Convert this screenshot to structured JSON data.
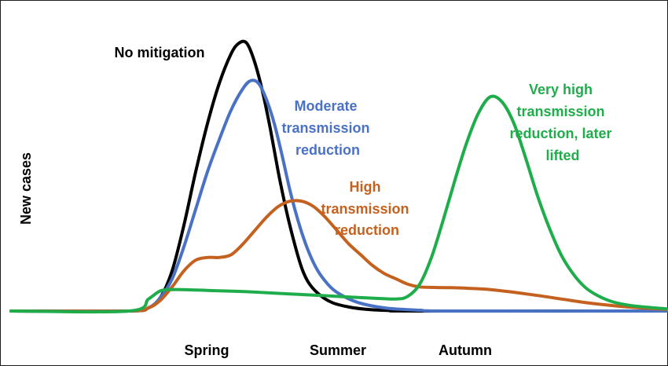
{
  "chart_data": {
    "type": "line",
    "ylabel": "New cases",
    "x_tick_labels": [
      "Spring",
      "Summer",
      "Autumn"
    ],
    "grid": false,
    "colors": {
      "no_mitigation": "#000000",
      "moderate": "#4a72c4",
      "high": "#c5611f",
      "very_high": "#1fad4c"
    },
    "series": [
      {
        "key": "no_mitigation",
        "label_lines": [
          "No mitigation"
        ],
        "color": "#000000",
        "points": [
          [
            0,
            0.0
          ],
          [
            150,
            0.0
          ],
          [
            175,
            0.012
          ],
          [
            190,
            0.05
          ],
          [
            205,
            0.15
          ],
          [
            220,
            0.32
          ],
          [
            235,
            0.52
          ],
          [
            250,
            0.7
          ],
          [
            265,
            0.85
          ],
          [
            280,
            0.96
          ],
          [
            290,
            1.0
          ],
          [
            300,
            1.0
          ],
          [
            310,
            0.93
          ],
          [
            320,
            0.82
          ],
          [
            330,
            0.68
          ],
          [
            340,
            0.52
          ],
          [
            350,
            0.38
          ],
          [
            360,
            0.26
          ],
          [
            370,
            0.16
          ],
          [
            380,
            0.1
          ],
          [
            395,
            0.055
          ],
          [
            410,
            0.03
          ],
          [
            430,
            0.015
          ],
          [
            450,
            0.007
          ],
          [
            480,
            0.002
          ],
          [
            520,
            0.0
          ],
          [
            835,
            0.0
          ]
        ]
      },
      {
        "key": "moderate",
        "label_lines": [
          "Moderate",
          "transmission",
          "reduction"
        ],
        "color": "#4a72c4",
        "points": [
          [
            0,
            0.0
          ],
          [
            150,
            0.0
          ],
          [
            175,
            0.012
          ],
          [
            190,
            0.05
          ],
          [
            205,
            0.12
          ],
          [
            220,
            0.24
          ],
          [
            235,
            0.38
          ],
          [
            250,
            0.52
          ],
          [
            265,
            0.64
          ],
          [
            280,
            0.75
          ],
          [
            295,
            0.83
          ],
          [
            305,
            0.86
          ],
          [
            315,
            0.85
          ],
          [
            325,
            0.79
          ],
          [
            335,
            0.7
          ],
          [
            345,
            0.58
          ],
          [
            355,
            0.45
          ],
          [
            365,
            0.34
          ],
          [
            375,
            0.25
          ],
          [
            385,
            0.18
          ],
          [
            395,
            0.13
          ],
          [
            410,
            0.08
          ],
          [
            430,
            0.045
          ],
          [
            450,
            0.025
          ],
          [
            480,
            0.01
          ],
          [
            520,
            0.003
          ],
          [
            560,
            0.0
          ],
          [
            835,
            0.0
          ]
        ]
      },
      {
        "key": "high",
        "label_lines": [
          "High",
          "transmission",
          "reduction"
        ],
        "color": "#c5611f",
        "points": [
          [
            0,
            0.0
          ],
          [
            150,
            0.0
          ],
          [
            175,
            0.012
          ],
          [
            190,
            0.04
          ],
          [
            205,
            0.09
          ],
          [
            220,
            0.15
          ],
          [
            235,
            0.19
          ],
          [
            250,
            0.2
          ],
          [
            265,
            0.2
          ],
          [
            280,
            0.21
          ],
          [
            295,
            0.25
          ],
          [
            310,
            0.3
          ],
          [
            325,
            0.35
          ],
          [
            340,
            0.39
          ],
          [
            355,
            0.41
          ],
          [
            370,
            0.41
          ],
          [
            385,
            0.39
          ],
          [
            400,
            0.35
          ],
          [
            415,
            0.3
          ],
          [
            430,
            0.25
          ],
          [
            445,
            0.21
          ],
          [
            460,
            0.17
          ],
          [
            475,
            0.14
          ],
          [
            490,
            0.12
          ],
          [
            505,
            0.1
          ],
          [
            520,
            0.09
          ],
          [
            540,
            0.088
          ],
          [
            560,
            0.087
          ],
          [
            580,
            0.085
          ],
          [
            610,
            0.08
          ],
          [
            640,
            0.07
          ],
          [
            670,
            0.058
          ],
          [
            700,
            0.045
          ],
          [
            730,
            0.032
          ],
          [
            760,
            0.022
          ],
          [
            790,
            0.014
          ],
          [
            835,
            0.006
          ]
        ]
      },
      {
        "key": "very_high",
        "label_lines": [
          "Very high",
          "transmission",
          "reduction, later",
          "lifted"
        ],
        "color": "#1fad4c",
        "points": [
          [
            0,
            0.0
          ],
          [
            150,
            0.0
          ],
          [
            175,
            0.045
          ],
          [
            190,
            0.075
          ],
          [
            205,
            0.08
          ],
          [
            230,
            0.079
          ],
          [
            260,
            0.076
          ],
          [
            300,
            0.072
          ],
          [
            340,
            0.066
          ],
          [
            380,
            0.06
          ],
          [
            420,
            0.054
          ],
          [
            460,
            0.048
          ],
          [
            490,
            0.045
          ],
          [
            505,
            0.055
          ],
          [
            520,
            0.1
          ],
          [
            535,
            0.2
          ],
          [
            550,
            0.34
          ],
          [
            565,
            0.49
          ],
          [
            580,
            0.63
          ],
          [
            595,
            0.74
          ],
          [
            610,
            0.8
          ],
          [
            625,
            0.78
          ],
          [
            640,
            0.7
          ],
          [
            655,
            0.57
          ],
          [
            670,
            0.43
          ],
          [
            685,
            0.31
          ],
          [
            700,
            0.21
          ],
          [
            715,
            0.14
          ],
          [
            730,
            0.09
          ],
          [
            745,
            0.06
          ],
          [
            765,
            0.035
          ],
          [
            790,
            0.02
          ],
          [
            835,
            0.008
          ]
        ]
      }
    ]
  }
}
